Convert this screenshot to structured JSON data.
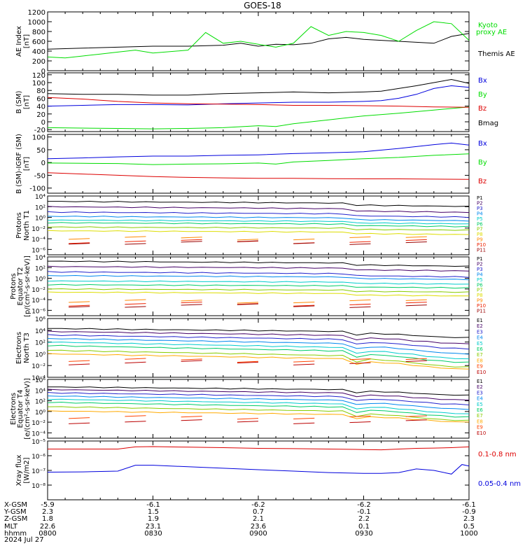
{
  "title": "GOES-18",
  "colors": {
    "black": "#000000",
    "green": "#00dd00",
    "blue": "#0000dd",
    "red": "#dd0000",
    "P1": "#000000",
    "P2": "#440066",
    "P3": "#2222cc",
    "P4": "#0088ee",
    "P5": "#00cccc",
    "P6": "#00cc66",
    "P7": "#88cc00",
    "P8": "#dddd00",
    "P9": "#ff8800",
    "P10": "#ee2200",
    "P11": "#990000",
    "E1": "#000000",
    "E2": "#440066",
    "E3": "#2222cc",
    "E4": "#0088ee",
    "E5": "#00cccc",
    "E6": "#00cc66",
    "E7": "#88cc00",
    "E8": "#ffaa00",
    "E9": "#ff4400",
    "E10": "#bb0000"
  },
  "chart_data": [
    {
      "panel": "ae",
      "type": "line",
      "ylabel": [
        "AE Index",
        "[nT]"
      ],
      "ylim": [
        0,
        1200
      ],
      "yticks": [
        "0",
        "200",
        "400",
        "600",
        "800",
        "1000",
        "1200"
      ],
      "legend": [
        "Kyoto",
        "proxy AE",
        "Themis AE"
      ],
      "x_minutes": [
        0,
        10,
        20,
        30,
        40,
        50,
        60,
        70,
        80,
        90,
        100,
        110,
        120
      ],
      "series": [
        {
          "name": "Themis AE",
          "color": "black",
          "x": [
            0,
            10,
            20,
            30,
            40,
            50,
            55,
            60,
            65,
            70,
            75,
            80,
            85,
            90,
            100,
            110,
            115,
            120
          ],
          "values": [
            440,
            460,
            480,
            500,
            500,
            520,
            560,
            500,
            540,
            530,
            560,
            650,
            680,
            640,
            600,
            560,
            700,
            760
          ]
        },
        {
          "name": "Kyoto proxy AE",
          "color": "green",
          "x": [
            0,
            5,
            10,
            15,
            20,
            25,
            30,
            40,
            45,
            50,
            55,
            60,
            65,
            70,
            75,
            80,
            85,
            90,
            95,
            100,
            105,
            110,
            115,
            120
          ],
          "values": [
            280,
            260,
            300,
            340,
            380,
            420,
            360,
            420,
            780,
            560,
            600,
            540,
            480,
            560,
            900,
            720,
            800,
            780,
            720,
            600,
            820,
            1000,
            960,
            620
          ]
        }
      ]
    },
    {
      "panel": "bsm",
      "type": "line",
      "ylabel": [
        "B (SM)",
        "[nT]"
      ],
      "ylim": [
        -25,
        125
      ],
      "yticks": [
        "-20",
        "0",
        "20",
        "40",
        "60",
        "80",
        "100",
        "120"
      ],
      "series": [
        {
          "name": "Bx",
          "color": "blue",
          "x": [
            0,
            10,
            20,
            30,
            40,
            50,
            60,
            70,
            80,
            90,
            95,
            100,
            105,
            110,
            115,
            120
          ],
          "values": [
            40,
            42,
            44,
            44,
            43,
            46,
            48,
            50,
            50,
            52,
            54,
            60,
            70,
            85,
            92,
            88
          ]
        },
        {
          "name": "By",
          "color": "green",
          "x": [
            0,
            10,
            20,
            30,
            40,
            50,
            60,
            65,
            70,
            80,
            90,
            100,
            110,
            120
          ],
          "values": [
            -15,
            -16,
            -17,
            -18,
            -17,
            -15,
            -10,
            -12,
            -5,
            5,
            15,
            22,
            30,
            38
          ]
        },
        {
          "name": "Bz",
          "color": "red",
          "x": [
            0,
            10,
            20,
            30,
            40,
            50,
            60,
            70,
            80,
            90,
            100,
            110,
            120
          ],
          "values": [
            62,
            58,
            52,
            48,
            46,
            45,
            44,
            42,
            42,
            41,
            40,
            38,
            37
          ]
        },
        {
          "name": "Bmag",
          "color": "black",
          "x": [
            0,
            10,
            20,
            30,
            40,
            50,
            60,
            70,
            80,
            90,
            95,
            100,
            105,
            110,
            115,
            120
          ],
          "values": [
            72,
            70,
            70,
            68,
            68,
            72,
            74,
            76,
            74,
            76,
            78,
            85,
            92,
            100,
            108,
            98
          ]
        }
      ],
      "legend": [
        "Bx",
        "By",
        "Bz",
        "Bmag"
      ]
    },
    {
      "panel": "bsm-igrf",
      "type": "line",
      "ylabel": [
        "B (SM)-IGRF (SM)",
        "[nT]"
      ],
      "ylim": [
        -120,
        110
      ],
      "yticks": [
        "-100",
        "-50",
        "0",
        "50",
        "100"
      ],
      "series": [
        {
          "name": "Bx",
          "color": "blue",
          "x": [
            0,
            10,
            20,
            30,
            40,
            50,
            60,
            70,
            80,
            90,
            100,
            110,
            115,
            120
          ],
          "values": [
            15,
            18,
            22,
            25,
            25,
            28,
            30,
            35,
            38,
            42,
            55,
            70,
            76,
            68
          ]
        },
        {
          "name": "By",
          "color": "green",
          "x": [
            0,
            10,
            20,
            30,
            40,
            50,
            60,
            65,
            70,
            80,
            90,
            100,
            110,
            120
          ],
          "values": [
            -2,
            -3,
            -4,
            -8,
            -6,
            -5,
            -2,
            -6,
            2,
            8,
            15,
            20,
            28,
            34
          ]
        },
        {
          "name": "Bz",
          "color": "red",
          "x": [
            0,
            10,
            20,
            30,
            40,
            50,
            60,
            70,
            80,
            90,
            100,
            110,
            120
          ],
          "values": [
            -40,
            -45,
            -50,
            -55,
            -58,
            -60,
            -62,
            -62,
            -63,
            -64,
            -64,
            -65,
            -66
          ]
        }
      ],
      "legend": [
        "Bx",
        "By",
        "Bz"
      ]
    },
    {
      "panel": "protons-n",
      "type": "line",
      "ylabel": [
        "Protons",
        "North T1"
      ],
      "log": true,
      "ylim_exp": [
        -7,
        4
      ],
      "yticks": [
        "10⁻⁶",
        "10⁻⁴",
        "10⁻²",
        "10⁰",
        "10²",
        "10⁴"
      ],
      "legend": [
        "P1",
        "P2",
        "P3",
        "P4",
        "P5",
        "P6",
        "P7",
        "P8",
        "P9",
        "P10",
        "P11"
      ],
      "series_start_exp": [
        3.0,
        2.0,
        1.0,
        0.2,
        -0.5,
        -1.0,
        -1.8,
        -2.5,
        -4.0,
        -4.6,
        -4.8
      ],
      "series_drop_exp": [
        0.8,
        0.9,
        0.8,
        0.7,
        0.6,
        0.6,
        0.5,
        0.6,
        0.0,
        0.0,
        0.0
      ]
    },
    {
      "panel": "protons-e",
      "type": "line",
      "ylabel": [
        "Protons",
        "Equator T2",
        "[p/(cm²-s-sr-keV)]"
      ],
      "log": true,
      "ylim_exp": [
        -7,
        4
      ],
      "yticks": [
        "10⁻⁶",
        "10⁻⁴",
        "10⁻²",
        "10⁰",
        "10²",
        "10⁴"
      ],
      "legend": [
        "P1",
        "P2",
        "P3",
        "P4",
        "P5",
        "P6",
        "P7",
        "P8",
        "P9",
        "P10",
        "P11"
      ],
      "series_start_exp": [
        3.2,
        2.2,
        1.2,
        0.5,
        -0.5,
        -1.2,
        -2.0,
        -2.6,
        -4.4,
        -4.9,
        -5.2
      ],
      "series_drop_exp": [
        0.8,
        0.7,
        0.8,
        0.6,
        0.5,
        0.5,
        0.5,
        0.6,
        0.0,
        0.0,
        0.0
      ]
    },
    {
      "panel": "electrons-n",
      "type": "line",
      "ylabel": [
        "Electrons",
        "North T3"
      ],
      "log": true,
      "ylim_exp": [
        -4,
        6
      ],
      "yticks": [
        "10⁻⁴",
        "10⁻²",
        "10⁰",
        "10²",
        "10⁴",
        "10⁶"
      ],
      "legend": [
        "E1",
        "E2",
        "E3",
        "E4",
        "E5",
        "E6",
        "E7",
        "E8",
        "E9",
        "E10"
      ],
      "series_start_exp": [
        4.3,
        3.8,
        3.2,
        2.6,
        2.0,
        1.4,
        0.6,
        0.0,
        -1.2,
        -1.6
      ],
      "series_drop_exp": [
        1.2,
        1.6,
        1.8,
        2.0,
        2.2,
        2.2,
        2.2,
        2.0,
        0.0,
        0.0
      ]
    },
    {
      "panel": "electrons-e",
      "type": "line",
      "ylabel": [
        "Electrons",
        "Equator T4",
        "[e/(cm²-s-sr-keV)]"
      ],
      "log": true,
      "ylim_exp": [
        -5,
        6
      ],
      "yticks": [
        "10⁻⁴",
        "10⁻²",
        "10⁰",
        "10²",
        "10⁴",
        "10⁶"
      ],
      "legend": [
        "E1",
        "E2",
        "E3",
        "E4",
        "E5",
        "E6",
        "E7",
        "E8",
        "E9",
        "E10"
      ],
      "series_start_exp": [
        4.6,
        4.1,
        3.5,
        2.9,
        2.3,
        1.7,
        0.9,
        0.1,
        -1.2,
        -2.0
      ],
      "series_drop_exp": [
        1.2,
        1.5,
        1.7,
        1.9,
        2.1,
        2.1,
        2.0,
        1.6,
        0.0,
        0.0
      ]
    },
    {
      "panel": "xray",
      "type": "line",
      "ylabel": [
        "Xray flux",
        "[W/m2]"
      ],
      "log": true,
      "ylim_exp": [
        -9,
        -5
      ],
      "yticks": [
        "10⁻⁸",
        "10⁻⁷",
        "10⁻⁶",
        "10⁻⁵"
      ],
      "series": [
        {
          "name": "0.1-0.8 nm",
          "color": "red",
          "x": [
            0,
            10,
            20,
            25,
            30,
            40,
            50,
            60,
            70,
            80,
            90,
            95,
            100,
            105,
            110,
            115,
            120
          ],
          "values": [
            -5.55,
            -5.55,
            -5.55,
            -5.4,
            -5.38,
            -5.42,
            -5.45,
            -5.5,
            -5.52,
            -5.55,
            -5.58,
            -5.6,
            -5.55,
            -5.5,
            -5.48,
            -5.45,
            -5.4
          ]
        },
        {
          "name": "0.05-0.4 nm",
          "color": "blue",
          "x": [
            0,
            10,
            20,
            25,
            30,
            40,
            50,
            60,
            70,
            80,
            90,
            95,
            100,
            105,
            110,
            115,
            118,
            120
          ],
          "values": [
            -7.12,
            -7.1,
            -7.05,
            -6.65,
            -6.65,
            -6.75,
            -6.85,
            -6.95,
            -7.05,
            -7.15,
            -7.2,
            -7.2,
            -7.15,
            -6.9,
            -7.0,
            -7.25,
            -6.6,
            -6.7
          ]
        }
      ],
      "legend": [
        "0.1-0.8 nm",
        "0.05-0.4 nm"
      ]
    }
  ],
  "footer": {
    "row_labels": [
      "X-GSM",
      "Y-GSM",
      "Z-GSM",
      "MLT",
      "hhmm",
      "2024 Jul 27"
    ],
    "columns": [
      [
        "-5.9",
        "2.3",
        "1.8",
        "22.6",
        "0800"
      ],
      [
        "-6.1",
        "1.5",
        "1.9",
        "23.1",
        "0830"
      ],
      [
        "-6.2",
        "0.7",
        "2.1",
        "23.6",
        "0900"
      ],
      [
        "-6.2",
        "-0.1",
        "2.2",
        "0.1",
        "0930"
      ],
      [
        "-6.1",
        "-0.9",
        "2.3",
        "0.5",
        "1000"
      ]
    ]
  }
}
